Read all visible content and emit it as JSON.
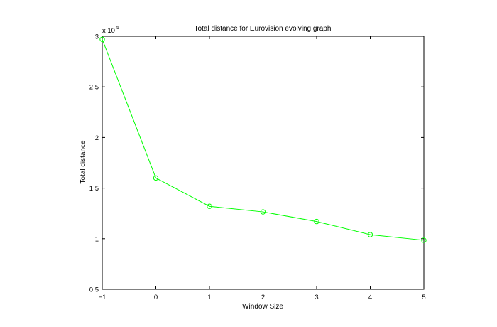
{
  "chart_data": {
    "type": "line",
    "title": "Total distance for Eurovision evolving graph",
    "xlabel": "Window Size",
    "ylabel": "Total distance",
    "y_multiplier": {
      "base": "x 10",
      "exponent": "5"
    },
    "xlim": [
      -1,
      5
    ],
    "ylim": [
      0.5,
      3
    ],
    "x_ticks": [
      -1,
      0,
      1,
      2,
      3,
      4,
      5
    ],
    "x_tick_labels": [
      "−1",
      "0",
      "1",
      "2",
      "3",
      "4",
      "5"
    ],
    "y_ticks": [
      0.5,
      1,
      1.5,
      2,
      2.5,
      3
    ],
    "y_tick_labels": [
      "0.5",
      "1",
      "1.5",
      "2",
      "2.5",
      "3"
    ],
    "grid": false,
    "series": [
      {
        "color": "#00ff00",
        "marker": "circle",
        "x": [
          -1,
          0,
          1,
          2,
          3,
          4,
          5
        ],
        "y": [
          2.97,
          1.6,
          1.32,
          1.265,
          1.17,
          1.04,
          0.985
        ]
      }
    ]
  }
}
